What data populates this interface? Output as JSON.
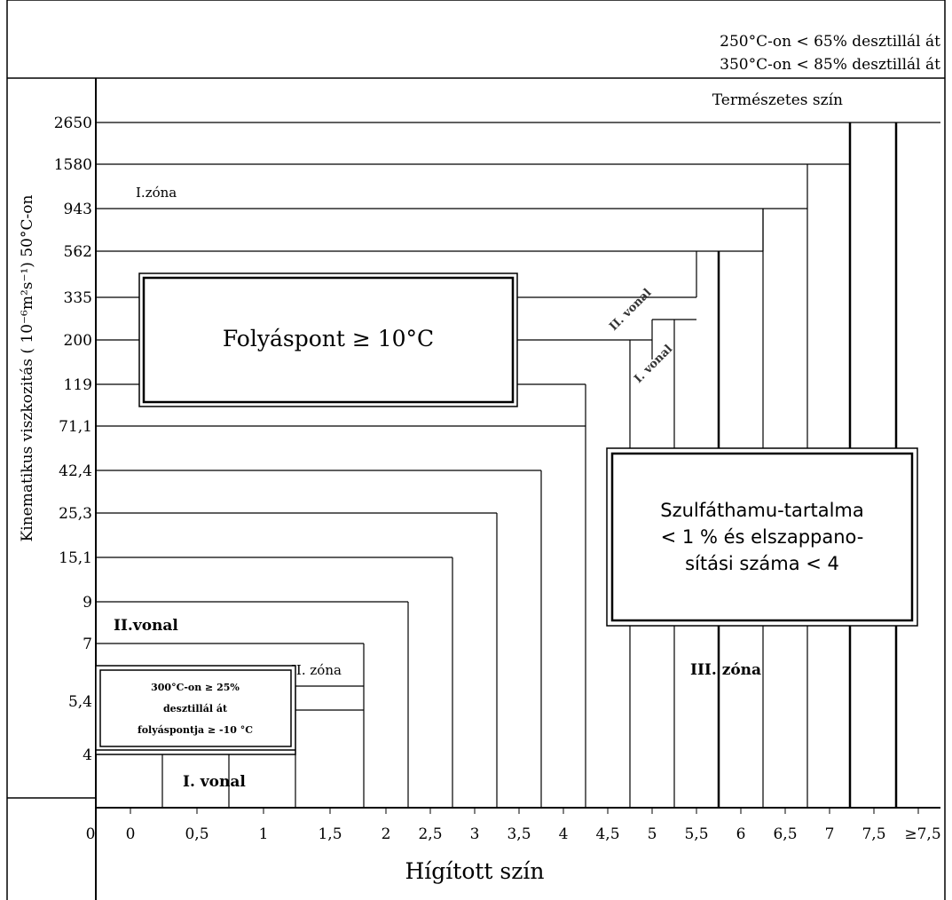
{
  "header": {
    "line1": "250°C-on < 65% desztillál át",
    "line2": "350°C-on < 85% desztillál át"
  },
  "y_axis_title": "Kinematikus viszkozitás ( 10⁻⁶m²s⁻¹) 50°C-on",
  "y_ticks": [
    "2650",
    "1580",
    "943",
    "562",
    "335",
    "200",
    "119",
    "71,1",
    "42,4",
    "25,3",
    "15,1",
    "9",
    "7",
    "5,4",
    "4"
  ],
  "x_axis_title": "Hígított szín",
  "x_ticks": [
    "0",
    "0",
    "0,5",
    "1",
    "1,5",
    "2",
    "2,5",
    "3",
    "3,5",
    "4",
    "4,5",
    "5",
    "5,5",
    "6",
    "6,5",
    "7",
    "7,5",
    "≥7,5"
  ],
  "labels": {
    "termeszetes": "Természetes szín",
    "zone1": "I.zóna",
    "zone2": "II. zóna",
    "zone3": "III. zóna",
    "line2_left": "II.vonal",
    "line1_bottom": "I. vonal",
    "line2_rot": "II. vonal",
    "line1_rot": "I. vonal"
  },
  "boxes": {
    "folyaspont": "Folyáspont ≥ 10°C",
    "szulfat": [
      "Szulfáthamu-tartalma",
      "< 1 % és elszappano-",
      "sítási száma < 4"
    ],
    "small": [
      "300°C-on ≥ 25%",
      "desztillál át",
      "folyáspontja ≥ -10 °C"
    ]
  }
}
